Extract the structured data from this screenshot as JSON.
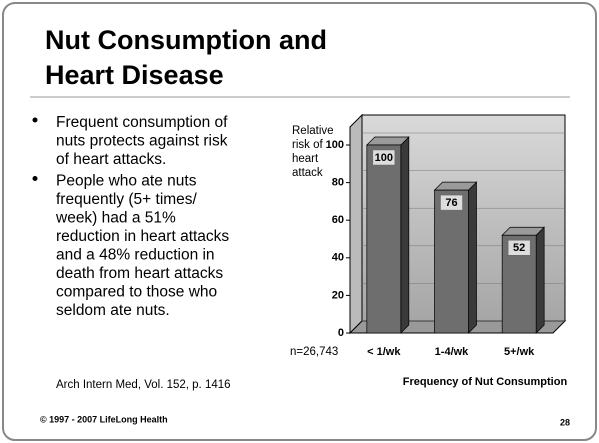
{
  "title": [
    "Nut Consumption and",
    "Heart Disease"
  ],
  "bullets": [
    [
      "Frequent consumption of",
      "nuts protects against risk",
      "of heart attacks."
    ],
    [
      "People who ate nuts",
      "frequently (5+ times/",
      "week) had a 51%",
      "reduction in heart attacks",
      "and a 48% reduction in",
      "death from heart attacks",
      "compared to those who",
      "seldom ate nuts."
    ]
  ],
  "citation": "Arch Intern Med, Vol. 152, p. 1416",
  "footer": "© 1997 - 2007 LifeLong Health",
  "page_number": "28",
  "chart_data": {
    "type": "bar",
    "y_label": [
      "Relative",
      "risk of",
      "heart",
      "attack"
    ],
    "x_label": "Frequency of Nut Consumption",
    "annotation": "n=26,743",
    "categories": [
      "< 1/wk",
      "1-4/wk",
      "5+/wk"
    ],
    "values": [
      100,
      76,
      52
    ],
    "color": "#6e6e6e",
    "ylim": [
      0,
      100
    ],
    "yticks": [
      0,
      20,
      40,
      60,
      80,
      100
    ]
  }
}
